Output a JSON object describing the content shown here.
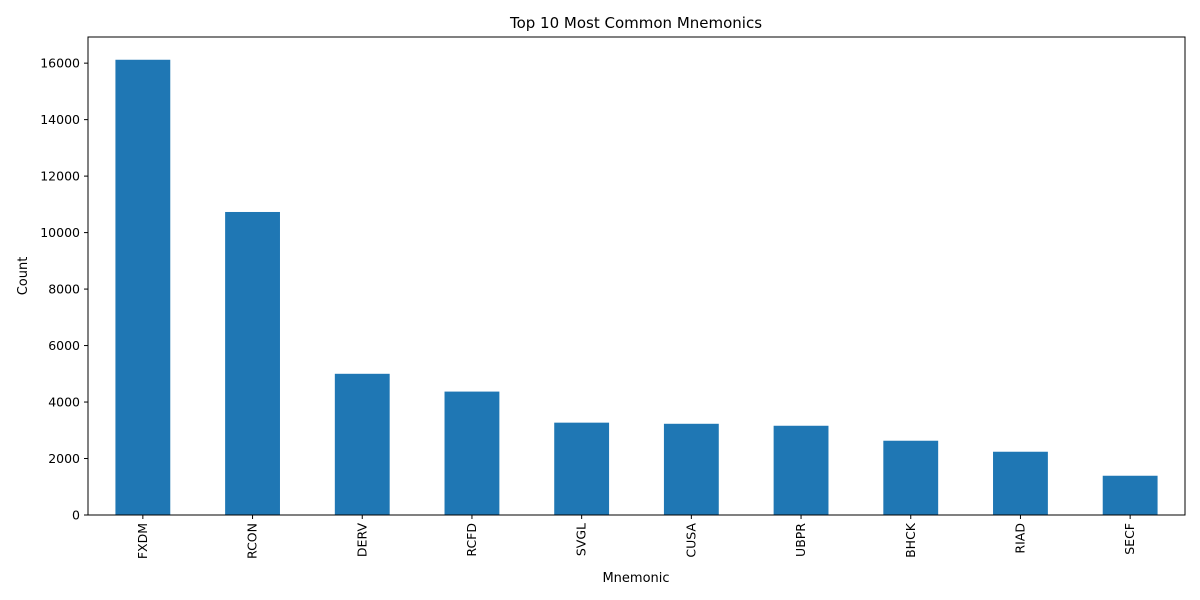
{
  "chart_data": {
    "type": "bar",
    "title": "Top 10 Most Common Mnemonics",
    "xlabel": "Mnemonic",
    "ylabel": "Count",
    "categories": [
      "FXDM",
      "RCON",
      "DERV",
      "RCFD",
      "SVGL",
      "CUSA",
      "UBPR",
      "BHCK",
      "RIAD",
      "SECF"
    ],
    "values": [
      16120,
      10730,
      5000,
      4370,
      3270,
      3230,
      3160,
      2630,
      2240,
      1390
    ],
    "ylim": [
      0,
      16926
    ],
    "yticks": [
      0,
      2000,
      4000,
      6000,
      8000,
      10000,
      12000,
      14000,
      16000
    ],
    "bar_color": "#1f77b4",
    "grid": false,
    "legend": "none"
  }
}
